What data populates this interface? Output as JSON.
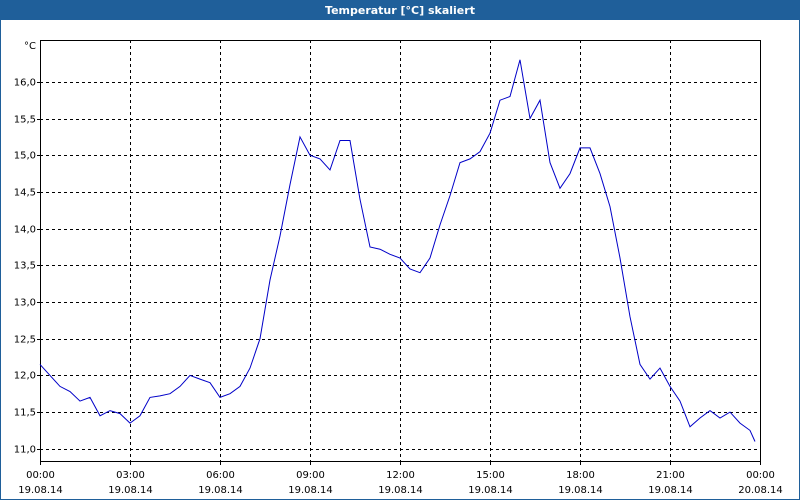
{
  "chart_data": {
    "type": "line",
    "title": "Temperatur [°C] skaliert",
    "y_unit": "°C",
    "x": [
      0,
      20,
      40,
      60,
      80,
      100,
      120,
      140,
      160,
      180,
      200,
      220,
      240,
      260,
      280,
      300,
      320,
      340,
      360,
      380,
      400,
      420,
      440,
      460,
      480,
      500,
      520,
      540,
      560,
      580,
      600,
      620,
      640,
      660,
      680,
      700,
      720,
      740,
      760,
      780,
      800,
      820,
      840,
      860,
      880,
      900,
      920,
      940,
      960,
      980,
      1000,
      1020,
      1040,
      1060,
      1080,
      1100,
      1120,
      1140,
      1160,
      1180,
      1200,
      1220,
      1240,
      1260,
      1280,
      1300,
      1320,
      1340,
      1360,
      1380,
      1400,
      1420,
      1430
    ],
    "series": [
      {
        "name": "Temperatur",
        "color": "#0000c8",
        "values": [
          12.15,
          12.0,
          11.85,
          11.78,
          11.65,
          11.7,
          11.45,
          11.52,
          11.48,
          11.35,
          11.45,
          11.7,
          11.72,
          11.75,
          11.85,
          12.0,
          11.95,
          11.9,
          11.7,
          11.75,
          11.85,
          12.1,
          12.5,
          13.3,
          13.9,
          14.6,
          15.25,
          15.0,
          14.95,
          14.8,
          15.2,
          15.2,
          14.4,
          13.75,
          13.72,
          13.65,
          13.6,
          13.45,
          13.4,
          13.6,
          14.05,
          14.45,
          14.9,
          14.95,
          15.05,
          15.3,
          15.75,
          15.8,
          16.3,
          15.5,
          15.75,
          14.9,
          14.55,
          14.75,
          15.1,
          15.1,
          14.75,
          14.3,
          13.6,
          12.8,
          12.15,
          11.95,
          12.1,
          11.85,
          11.65,
          11.3,
          11.42,
          11.52,
          11.42,
          11.5,
          11.35,
          11.25,
          11.1
        ]
      }
    ],
    "xlim": [
      0,
      1440
    ],
    "ylim": [
      10.82,
      16.57
    ],
    "xticks": [
      {
        "value": 0,
        "label": [
          "00:00",
          "19.08.14"
        ]
      },
      {
        "value": 180,
        "label": [
          "03:00",
          "19.08.14"
        ]
      },
      {
        "value": 360,
        "label": [
          "06:00",
          "19.08.14"
        ]
      },
      {
        "value": 540,
        "label": [
          "09:00",
          "19.08.14"
        ]
      },
      {
        "value": 720,
        "label": [
          "12:00",
          "19.08.14"
        ]
      },
      {
        "value": 900,
        "label": [
          "15:00",
          "19.08.14"
        ]
      },
      {
        "value": 1080,
        "label": [
          "18:00",
          "19.08.14"
        ]
      },
      {
        "value": 1260,
        "label": [
          "21:00",
          "19.08.14"
        ]
      },
      {
        "value": 1440,
        "label": [
          "00:00",
          "20.08.14"
        ]
      }
    ],
    "yticks": [
      {
        "value": 11,
        "label": "11,0"
      },
      {
        "value": 11.5,
        "label": "11,5"
      },
      {
        "value": 12,
        "label": "12,0"
      },
      {
        "value": 12.5,
        "label": "12,5"
      },
      {
        "value": 13,
        "label": "13,0"
      },
      {
        "value": 13.5,
        "label": "13,5"
      },
      {
        "value": 14,
        "label": "14,0"
      },
      {
        "value": 14.5,
        "label": "14,5"
      },
      {
        "value": 15,
        "label": "15,0"
      },
      {
        "value": 15.5,
        "label": "15,5"
      },
      {
        "value": 16,
        "label": "16,0"
      }
    ],
    "grid": true
  }
}
